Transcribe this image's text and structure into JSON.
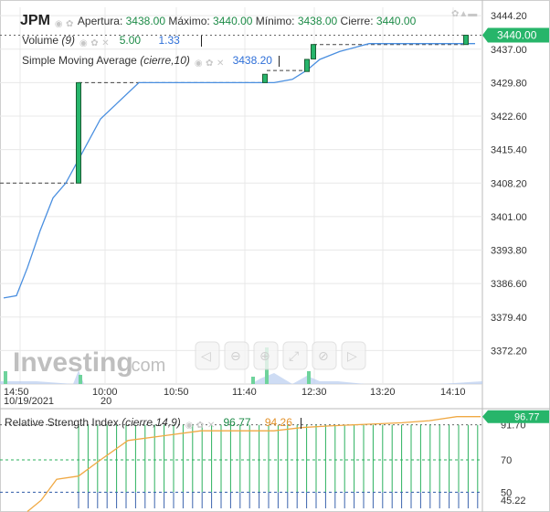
{
  "header": {
    "symbol": "JPM",
    "open_label": "Apertura:",
    "open_value": "3438.00",
    "high_label": "Máximo:",
    "high_value": "3440.00",
    "low_label": "Mínimo:",
    "low_value": "3438.00",
    "close_label": "Cierre:",
    "close_value": "3440.00"
  },
  "indicators": {
    "volume_label": "Volume",
    "volume_param": "(9)",
    "volume_val1": "5.00",
    "volume_val2": "1.33",
    "sma_label": "Simple Moving Average",
    "sma_param": "(cierre,10)",
    "sma_value": "3438.20",
    "rsi_label": "Relative Strength Index",
    "rsi_param": "(cierre,14,9)",
    "rsi_val1": "96.77",
    "rsi_val2": "94.26"
  },
  "price_badge": "3440.00",
  "rsi_badge": "96.77",
  "watermark": {
    "brand": "Investing",
    "suffix": ".com"
  },
  "toolbar": [
    "zoom-out-icon",
    "zoom-in-icon",
    "fullscreen-icon",
    "crosshair-icon",
    "fibonacci-icon",
    "reset-icon"
  ],
  "colors": {
    "up": "#26b56b",
    "sma": "#4a8fe0",
    "rsi": "#f0a944",
    "badge": "#27b56a",
    "grid": "#e8e8e8"
  },
  "chart_data": [
    {
      "type": "candlestick",
      "ylim": [
        3365,
        3446
      ],
      "y_ticks": [
        "3444.20",
        "3437.00",
        "3429.80",
        "3422.60",
        "3415.40",
        "3408.20",
        "3401.00",
        "3393.80",
        "3386.60",
        "3379.40",
        "3372.20"
      ],
      "x_ticks": [
        "14:50",
        "10:00",
        "10:50",
        "11:40",
        "12:30",
        "13:20",
        "14:10"
      ],
      "x_date_labels": [
        "10/19/2021",
        "20"
      ],
      "candles": [
        {
          "open": 3408.2,
          "high": 3429.8,
          "low": 3408.2,
          "close": 3429.8
        },
        {
          "open": 3429.8,
          "high": 3431.6,
          "low": 3429.8,
          "close": 3431.6
        },
        {
          "open": 3432.2,
          "high": 3434.8,
          "low": 3432.2,
          "close": 3434.8
        },
        {
          "open": 3434.9,
          "high": 3438.0,
          "low": 3434.9,
          "close": 3438.0
        },
        {
          "open": 3438.0,
          "high": 3440.0,
          "low": 3438.0,
          "close": 3440.0
        }
      ],
      "sma": [
        3383.5,
        3384,
        3390,
        3398,
        3405,
        3408.2,
        3414,
        3422,
        3429.8,
        3429.8,
        3429.8,
        3429.8,
        3429.8,
        3430.5,
        3432.5,
        3434.8,
        3436.5,
        3438.2,
        3438.2,
        3438.2,
        3438.2
      ],
      "volume": [
        1,
        1,
        0,
        5,
        0,
        0,
        0,
        0,
        2,
        4,
        0,
        3,
        1,
        1,
        0,
        0,
        0,
        1
      ]
    },
    {
      "type": "line",
      "title": "Relative Strength Index",
      "ylim": [
        40,
        100
      ],
      "y_ticks": [
        "91.70",
        "70",
        "50",
        "45.22"
      ],
      "rsi": [
        38,
        45,
        58,
        60,
        70,
        82,
        85,
        88,
        88,
        88,
        90,
        91,
        92,
        93,
        94.26,
        96.77,
        96.77
      ]
    }
  ]
}
